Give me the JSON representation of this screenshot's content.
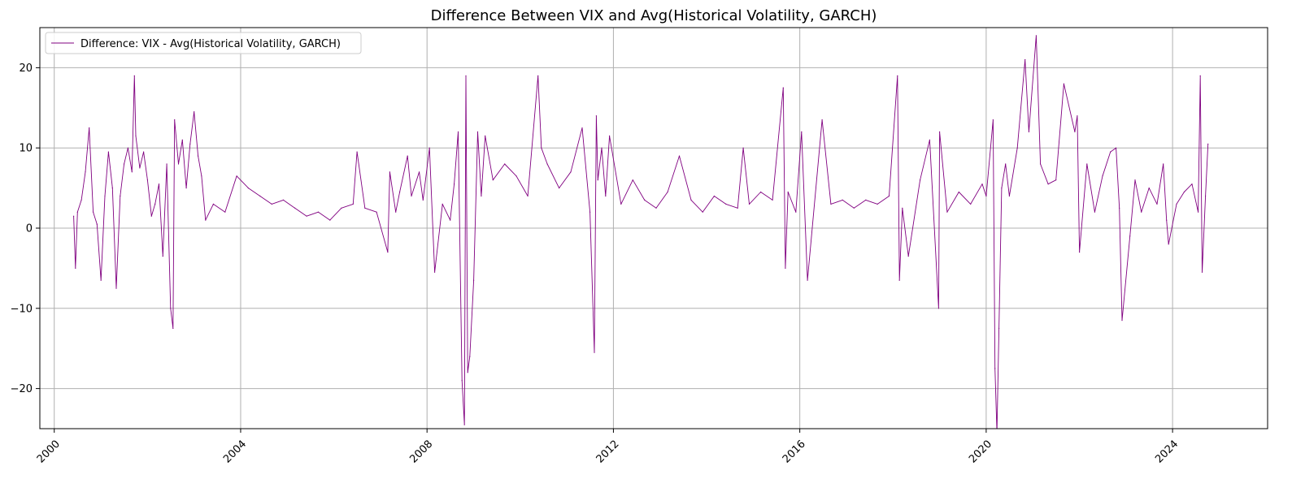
{
  "chart_data": {
    "type": "line",
    "title": "Difference Between VIX and Avg(Historical Volatility, GARCH)",
    "xlabel": "",
    "ylabel": "",
    "xlim": [
      "1999-09-10",
      "2026-01-15"
    ],
    "ylim": [
      -25,
      25
    ],
    "x_ticks": [
      "2000",
      "2004",
      "2008",
      "2012",
      "2016",
      "2020",
      "2024"
    ],
    "y_ticks": [
      -20,
      -10,
      0,
      10,
      20
    ],
    "grid": true,
    "legend_position": "upper left",
    "series": [
      {
        "name": "Difference: VIX - Avg(Historical Volatility, GARCH)",
        "color": "#800080",
        "x": [
          "2000-06-01",
          "2000-06-15",
          "2000-07-01",
          "2000-08-01",
          "2000-09-01",
          "2000-10-01",
          "2000-11-01",
          "2000-12-01",
          "2001-01-01",
          "2001-02-01",
          "2001-03-01",
          "2001-04-01",
          "2001-05-01",
          "2001-06-01",
          "2001-07-01",
          "2001-08-01",
          "2001-09-01",
          "2001-09-20",
          "2001-10-01",
          "2001-11-01",
          "2001-12-01",
          "2002-01-01",
          "2002-02-01",
          "2002-03-01",
          "2002-04-01",
          "2002-05-01",
          "2002-06-01",
          "2002-07-01",
          "2002-07-20",
          "2002-08-01",
          "2002-09-01",
          "2002-10-01",
          "2002-11-01",
          "2002-12-01",
          "2003-01-01",
          "2003-02-01",
          "2003-03-01",
          "2003-04-01",
          "2003-06-01",
          "2003-09-01",
          "2003-12-01",
          "2004-03-01",
          "2004-06-01",
          "2004-09-01",
          "2004-12-01",
          "2005-03-01",
          "2005-06-01",
          "2005-09-01",
          "2005-12-01",
          "2006-03-01",
          "2006-06-01",
          "2006-07-01",
          "2006-09-01",
          "2006-12-01",
          "2007-02-27",
          "2007-03-15",
          "2007-05-01",
          "2007-06-01",
          "2007-08-01",
          "2007-09-01",
          "2007-11-01",
          "2007-12-01",
          "2008-01-20",
          "2008-03-01",
          "2008-05-01",
          "2008-07-01",
          "2008-08-01",
          "2008-09-01",
          "2008-10-01",
          "2008-10-20",
          "2008-11-01",
          "2008-11-15",
          "2008-12-01",
          "2009-01-01",
          "2009-02-01",
          "2009-03-01",
          "2009-04-01",
          "2009-06-01",
          "2009-09-01",
          "2009-12-01",
          "2010-03-01",
          "2010-05-20",
          "2010-06-15",
          "2010-08-01",
          "2010-11-01",
          "2011-02-01",
          "2011-05-01",
          "2011-07-01",
          "2011-08-05",
          "2011-08-20",
          "2011-09-01",
          "2011-10-01",
          "2011-11-01",
          "2011-12-01",
          "2012-03-01",
          "2012-06-01",
          "2012-09-01",
          "2012-12-01",
          "2013-03-01",
          "2013-06-01",
          "2013-09-01",
          "2013-12-01",
          "2014-03-01",
          "2014-06-01",
          "2014-09-01",
          "2014-10-15",
          "2014-12-01",
          "2015-03-01",
          "2015-06-01",
          "2015-08-24",
          "2015-09-10",
          "2015-10-01",
          "2015-12-01",
          "2016-01-15",
          "2016-03-01",
          "2016-06-24",
          "2016-09-01",
          "2016-12-01",
          "2017-03-01",
          "2017-06-01",
          "2017-09-01",
          "2017-12-01",
          "2018-02-05",
          "2018-02-20",
          "2018-03-15",
          "2018-05-01",
          "2018-08-01",
          "2018-10-15",
          "2018-12-24",
          "2019-01-01",
          "2019-03-01",
          "2019-06-01",
          "2019-09-01",
          "2019-12-01",
          "2020-01-01",
          "2020-02-24",
          "2020-03-10",
          "2020-03-25",
          "2020-04-10",
          "2020-05-01",
          "2020-06-01",
          "2020-07-01",
          "2020-09-01",
          "2020-11-01",
          "2020-12-01",
          "2021-01-27",
          "2021-03-01",
          "2021-05-01",
          "2021-07-01",
          "2021-09-01",
          "2021-11-26",
          "2021-12-15",
          "2022-01-01",
          "2022-03-01",
          "2022-05-01",
          "2022-07-01",
          "2022-09-01",
          "2022-10-15",
          "2022-11-10",
          "2022-12-01",
          "2023-02-01",
          "2023-03-13",
          "2023-05-01",
          "2023-07-01",
          "2023-09-01",
          "2023-10-20",
          "2023-11-15",
          "2023-12-01",
          "2024-02-01",
          "2024-04-01",
          "2024-06-01",
          "2024-07-20",
          "2024-08-05",
          "2024-08-20",
          "2024-09-15",
          "2024-10-05"
        ],
        "values": [
          1.5,
          -5.0,
          2.0,
          3.5,
          7.0,
          12.5,
          2.0,
          0.5,
          -6.5,
          4.0,
          9.5,
          5.0,
          -7.5,
          4.0,
          8.0,
          10.0,
          7.0,
          19.0,
          11.5,
          7.5,
          9.5,
          6.0,
          1.5,
          3.0,
          5.5,
          -3.5,
          8.0,
          -10.0,
          -12.5,
          13.5,
          8.0,
          11.0,
          5.0,
          10.5,
          14.5,
          9.0,
          6.5,
          1.0,
          3.0,
          2.0,
          6.5,
          5.0,
          4.0,
          3.0,
          3.5,
          2.5,
          1.5,
          2.0,
          1.0,
          2.5,
          3.0,
          9.5,
          2.5,
          2.0,
          -3.0,
          7.0,
          2.0,
          4.5,
          9.0,
          4.0,
          7.0,
          3.5,
          10.0,
          -5.5,
          3.0,
          1.0,
          5.5,
          12.0,
          -19.0,
          -24.5,
          19.0,
          -18.0,
          -16.0,
          -6.5,
          12.0,
          4.0,
          11.5,
          6.0,
          8.0,
          6.5,
          4.0,
          19.0,
          10.0,
          8.0,
          5.0,
          7.0,
          12.5,
          2.0,
          -15.5,
          14.0,
          6.0,
          10.0,
          4.0,
          11.5,
          3.0,
          6.0,
          3.5,
          2.5,
          4.5,
          9.0,
          3.5,
          2.0,
          4.0,
          3.0,
          2.5,
          10.0,
          3.0,
          4.5,
          3.5,
          17.5,
          -5.0,
          4.5,
          2.0,
          12.0,
          -6.5,
          13.5,
          3.0,
          3.5,
          2.5,
          3.5,
          3.0,
          4.0,
          19.0,
          -6.5,
          2.5,
          -3.5,
          6.0,
          11.0,
          -10.0,
          12.0,
          2.0,
          4.5,
          3.0,
          5.5,
          4.0,
          13.5,
          -17.5,
          -25.5,
          -12.5,
          5.0,
          8.0,
          4.0,
          10.0,
          21.0,
          12.0,
          24.0,
          8.0,
          5.5,
          6.0,
          18.0,
          12.0,
          14.0,
          -3.0,
          8.0,
          2.0,
          6.5,
          9.5,
          10.0,
          2.5,
          -11.5,
          -1.0,
          6.0,
          2.0,
          5.0,
          3.0,
          8.0,
          1.0,
          -2.0,
          3.0,
          4.5,
          5.5,
          2.0,
          19.0,
          -5.5,
          4.0,
          10.5
        ]
      }
    ]
  }
}
